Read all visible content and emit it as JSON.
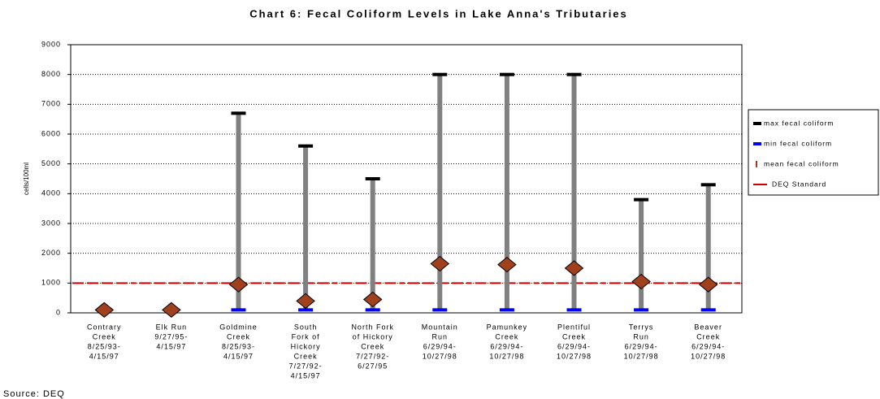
{
  "chart_data": {
    "type": "hilo",
    "title": "Chart 6: Fecal Coliform Levels in Lake Anna's Tributaries",
    "y_label": "cells/100ml",
    "source": "Source: DEQ",
    "categories": [
      [
        "Contrary",
        "Creek",
        "8/25/93-",
        "4/15/97"
      ],
      [
        "Elk Run",
        "9/27/95-",
        "4/15/97"
      ],
      [
        "Goldmine",
        "Creek",
        "8/25/93-",
        "4/15/97"
      ],
      [
        "South",
        "Fork of",
        "Hickory",
        "Creek",
        "7/27/92-",
        "4/15/97"
      ],
      [
        "North Fork",
        "of Hickory",
        "Creek",
        "7/27/92-",
        "6/27/95"
      ],
      [
        "Mountain",
        "Run",
        "6/29/94-",
        "10/27/98"
      ],
      [
        "Pamunkey",
        "Creek",
        "6/29/94-",
        "10/27/98"
      ],
      [
        "Plentiful",
        "Creek",
        "6/29/94-",
        "10/27/98"
      ],
      [
        "Terrys",
        "Run",
        "6/29/94-",
        "10/27/98"
      ],
      [
        "Beaver",
        "Creek",
        "6/29/94-",
        "10/27/98"
      ]
    ],
    "series": [
      {
        "name": "max fecal coliform",
        "color": "#000000",
        "values": [
          null,
          null,
          6700,
          5600,
          4500,
          8000,
          8000,
          8000,
          3800,
          4300
        ]
      },
      {
        "name": "min fecal coliform",
        "color": "#0000ff",
        "values": [
          null,
          null,
          100,
          100,
          100,
          100,
          100,
          100,
          100,
          100
        ]
      },
      {
        "name": "mean fecal coliform",
        "color": "#a0401c",
        "values": [
          100,
          100,
          950,
          400,
          450,
          1650,
          1620,
          1500,
          1050,
          950
        ]
      },
      {
        "name": "DEQ Standard",
        "color": "#cc0000",
        "values": [
          1000,
          1000,
          1000,
          1000,
          1000,
          1000,
          1000,
          1000,
          1000,
          1000
        ]
      }
    ],
    "range_color": "#808080",
    "ylim": [
      0,
      9000
    ],
    "yticks": [
      0,
      1000,
      2000,
      3000,
      4000,
      5000,
      6000,
      7000,
      8000,
      9000
    ],
    "grid": true
  }
}
